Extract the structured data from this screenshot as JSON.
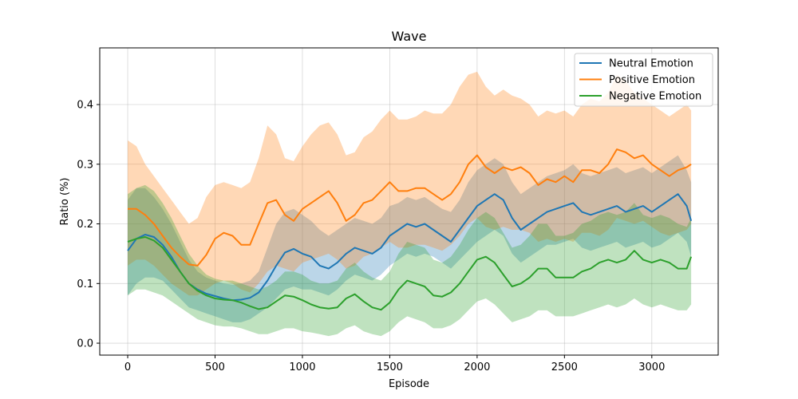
{
  "chart_data": {
    "type": "line",
    "title": "Wave",
    "xlabel": "Episode",
    "ylabel": "Ratio (%)",
    "xlim": [
      -160,
      3380
    ],
    "ylim": [
      -0.02,
      0.495
    ],
    "xticks": [
      0,
      500,
      1000,
      1500,
      2000,
      2500,
      3000
    ],
    "yticks": [
      0.0,
      0.1,
      0.2,
      0.3,
      0.4
    ],
    "grid": true,
    "legend_position": "top-right",
    "x": [
      0,
      50,
      100,
      150,
      200,
      250,
      300,
      350,
      400,
      450,
      500,
      550,
      600,
      650,
      700,
      750,
      800,
      850,
      900,
      950,
      1000,
      1050,
      1100,
      1150,
      1200,
      1250,
      1300,
      1350,
      1400,
      1450,
      1500,
      1550,
      1600,
      1650,
      1700,
      1750,
      1800,
      1850,
      1900,
      1950,
      2000,
      2050,
      2100,
      2150,
      2200,
      2250,
      2300,
      2350,
      2400,
      2450,
      2500,
      2550,
      2600,
      2650,
      2700,
      2750,
      2800,
      2850,
      2900,
      2950,
      3000,
      3050,
      3100,
      3150,
      3200,
      3225
    ],
    "series": [
      {
        "name": "Neutral Emotion",
        "color": "#1f77b4",
        "values": [
          0.155,
          0.175,
          0.182,
          0.178,
          0.165,
          0.145,
          0.12,
          0.1,
          0.09,
          0.083,
          0.079,
          0.075,
          0.072,
          0.073,
          0.076,
          0.085,
          0.105,
          0.13,
          0.152,
          0.158,
          0.15,
          0.145,
          0.13,
          0.125,
          0.135,
          0.15,
          0.16,
          0.155,
          0.15,
          0.16,
          0.18,
          0.19,
          0.2,
          0.195,
          0.2,
          0.19,
          0.18,
          0.17,
          0.19,
          0.21,
          0.23,
          0.24,
          0.25,
          0.24,
          0.21,
          0.19,
          0.2,
          0.21,
          0.22,
          0.225,
          0.23,
          0.235,
          0.22,
          0.215,
          0.22,
          0.225,
          0.23,
          0.22,
          0.225,
          0.23,
          0.22,
          0.23,
          0.24,
          0.25,
          0.23,
          0.205
        ],
        "band_upper": [
          0.24,
          0.26,
          0.26,
          0.245,
          0.225,
          0.2,
          0.17,
          0.14,
          0.12,
          0.11,
          0.105,
          0.1,
          0.098,
          0.1,
          0.105,
          0.12,
          0.16,
          0.2,
          0.22,
          0.225,
          0.215,
          0.205,
          0.19,
          0.18,
          0.19,
          0.2,
          0.21,
          0.205,
          0.2,
          0.21,
          0.23,
          0.235,
          0.245,
          0.24,
          0.245,
          0.235,
          0.225,
          0.22,
          0.24,
          0.27,
          0.29,
          0.3,
          0.31,
          0.3,
          0.27,
          0.25,
          0.26,
          0.27,
          0.28,
          0.285,
          0.29,
          0.3,
          0.285,
          0.28,
          0.285,
          0.29,
          0.295,
          0.285,
          0.29,
          0.295,
          0.285,
          0.295,
          0.305,
          0.315,
          0.29,
          0.27
        ],
        "band_lower": [
          0.08,
          0.1,
          0.11,
          0.11,
          0.105,
          0.09,
          0.075,
          0.06,
          0.055,
          0.05,
          0.045,
          0.04,
          0.035,
          0.035,
          0.04,
          0.05,
          0.06,
          0.075,
          0.09,
          0.095,
          0.09,
          0.09,
          0.085,
          0.08,
          0.09,
          0.105,
          0.115,
          0.11,
          0.105,
          0.115,
          0.13,
          0.14,
          0.15,
          0.145,
          0.15,
          0.145,
          0.135,
          0.125,
          0.14,
          0.155,
          0.17,
          0.18,
          0.19,
          0.18,
          0.15,
          0.135,
          0.145,
          0.155,
          0.165,
          0.165,
          0.17,
          0.175,
          0.16,
          0.155,
          0.16,
          0.165,
          0.17,
          0.16,
          0.165,
          0.17,
          0.16,
          0.165,
          0.175,
          0.185,
          0.17,
          0.145
        ]
      },
      {
        "name": "Positive Emotion",
        "color": "#ff7f0e",
        "values": [
          0.225,
          0.225,
          0.215,
          0.2,
          0.18,
          0.16,
          0.145,
          0.132,
          0.13,
          0.148,
          0.175,
          0.185,
          0.18,
          0.165,
          0.165,
          0.2,
          0.235,
          0.24,
          0.215,
          0.205,
          0.225,
          0.235,
          0.245,
          0.255,
          0.235,
          0.205,
          0.215,
          0.235,
          0.24,
          0.255,
          0.27,
          0.255,
          0.255,
          0.26,
          0.26,
          0.25,
          0.24,
          0.25,
          0.27,
          0.3,
          0.315,
          0.295,
          0.285,
          0.295,
          0.29,
          0.295,
          0.285,
          0.265,
          0.275,
          0.27,
          0.28,
          0.27,
          0.29,
          0.29,
          0.285,
          0.3,
          0.325,
          0.32,
          0.31,
          0.315,
          0.3,
          0.29,
          0.28,
          0.29,
          0.295,
          0.3
        ],
        "band_upper": [
          0.34,
          0.33,
          0.3,
          0.28,
          0.26,
          0.24,
          0.22,
          0.2,
          0.21,
          0.245,
          0.265,
          0.27,
          0.265,
          0.26,
          0.27,
          0.31,
          0.365,
          0.35,
          0.31,
          0.305,
          0.33,
          0.35,
          0.365,
          0.37,
          0.35,
          0.315,
          0.32,
          0.345,
          0.355,
          0.375,
          0.39,
          0.375,
          0.375,
          0.38,
          0.39,
          0.385,
          0.385,
          0.4,
          0.43,
          0.45,
          0.455,
          0.43,
          0.415,
          0.425,
          0.415,
          0.41,
          0.4,
          0.38,
          0.39,
          0.385,
          0.39,
          0.38,
          0.4,
          0.41,
          0.405,
          0.42,
          0.45,
          0.44,
          0.42,
          0.41,
          0.4,
          0.39,
          0.38,
          0.39,
          0.4,
          0.39
        ],
        "band_lower": [
          0.13,
          0.14,
          0.14,
          0.13,
          0.115,
          0.1,
          0.09,
          0.08,
          0.08,
          0.09,
          0.1,
          0.105,
          0.1,
          0.09,
          0.085,
          0.1,
          0.12,
          0.13,
          0.125,
          0.12,
          0.135,
          0.14,
          0.145,
          0.15,
          0.14,
          0.125,
          0.13,
          0.145,
          0.15,
          0.16,
          0.17,
          0.16,
          0.16,
          0.165,
          0.165,
          0.16,
          0.155,
          0.165,
          0.18,
          0.2,
          0.21,
          0.195,
          0.19,
          0.195,
          0.19,
          0.19,
          0.185,
          0.17,
          0.175,
          0.17,
          0.175,
          0.17,
          0.185,
          0.185,
          0.18,
          0.19,
          0.21,
          0.205,
          0.2,
          0.205,
          0.195,
          0.185,
          0.18,
          0.185,
          0.19,
          0.2
        ]
      },
      {
        "name": "Negative Emotion",
        "color": "#2ca02c",
        "values": [
          0.17,
          0.175,
          0.178,
          0.172,
          0.16,
          0.14,
          0.12,
          0.1,
          0.088,
          0.08,
          0.075,
          0.073,
          0.072,
          0.068,
          0.062,
          0.057,
          0.06,
          0.07,
          0.08,
          0.078,
          0.072,
          0.065,
          0.06,
          0.058,
          0.06,
          0.075,
          0.082,
          0.07,
          0.06,
          0.056,
          0.068,
          0.09,
          0.105,
          0.1,
          0.095,
          0.08,
          0.078,
          0.085,
          0.1,
          0.12,
          0.14,
          0.145,
          0.135,
          0.115,
          0.095,
          0.1,
          0.11,
          0.125,
          0.125,
          0.11,
          0.11,
          0.11,
          0.12,
          0.125,
          0.135,
          0.14,
          0.135,
          0.14,
          0.155,
          0.14,
          0.135,
          0.14,
          0.135,
          0.125,
          0.125,
          0.145
        ],
        "band_upper": [
          0.25,
          0.26,
          0.265,
          0.255,
          0.235,
          0.21,
          0.18,
          0.15,
          0.13,
          0.115,
          0.108,
          0.105,
          0.105,
          0.1,
          0.095,
          0.09,
          0.095,
          0.105,
          0.12,
          0.12,
          0.115,
          0.105,
          0.1,
          0.1,
          0.105,
          0.125,
          0.135,
          0.12,
          0.11,
          0.105,
          0.12,
          0.15,
          0.17,
          0.165,
          0.16,
          0.14,
          0.135,
          0.145,
          0.165,
          0.19,
          0.21,
          0.22,
          0.21,
          0.185,
          0.16,
          0.165,
          0.18,
          0.2,
          0.2,
          0.18,
          0.18,
          0.185,
          0.2,
          0.205,
          0.215,
          0.22,
          0.215,
          0.22,
          0.235,
          0.215,
          0.21,
          0.215,
          0.21,
          0.2,
          0.195,
          0.21
        ],
        "band_lower": [
          0.08,
          0.09,
          0.09,
          0.085,
          0.08,
          0.07,
          0.06,
          0.05,
          0.04,
          0.035,
          0.03,
          0.028,
          0.028,
          0.025,
          0.02,
          0.015,
          0.015,
          0.02,
          0.025,
          0.025,
          0.02,
          0.018,
          0.015,
          0.012,
          0.015,
          0.025,
          0.03,
          0.02,
          0.015,
          0.012,
          0.02,
          0.035,
          0.045,
          0.04,
          0.035,
          0.025,
          0.025,
          0.03,
          0.04,
          0.055,
          0.07,
          0.075,
          0.065,
          0.05,
          0.035,
          0.04,
          0.045,
          0.055,
          0.055,
          0.045,
          0.045,
          0.045,
          0.05,
          0.055,
          0.06,
          0.065,
          0.06,
          0.065,
          0.075,
          0.065,
          0.06,
          0.065,
          0.06,
          0.055,
          0.055,
          0.065
        ]
      }
    ]
  }
}
